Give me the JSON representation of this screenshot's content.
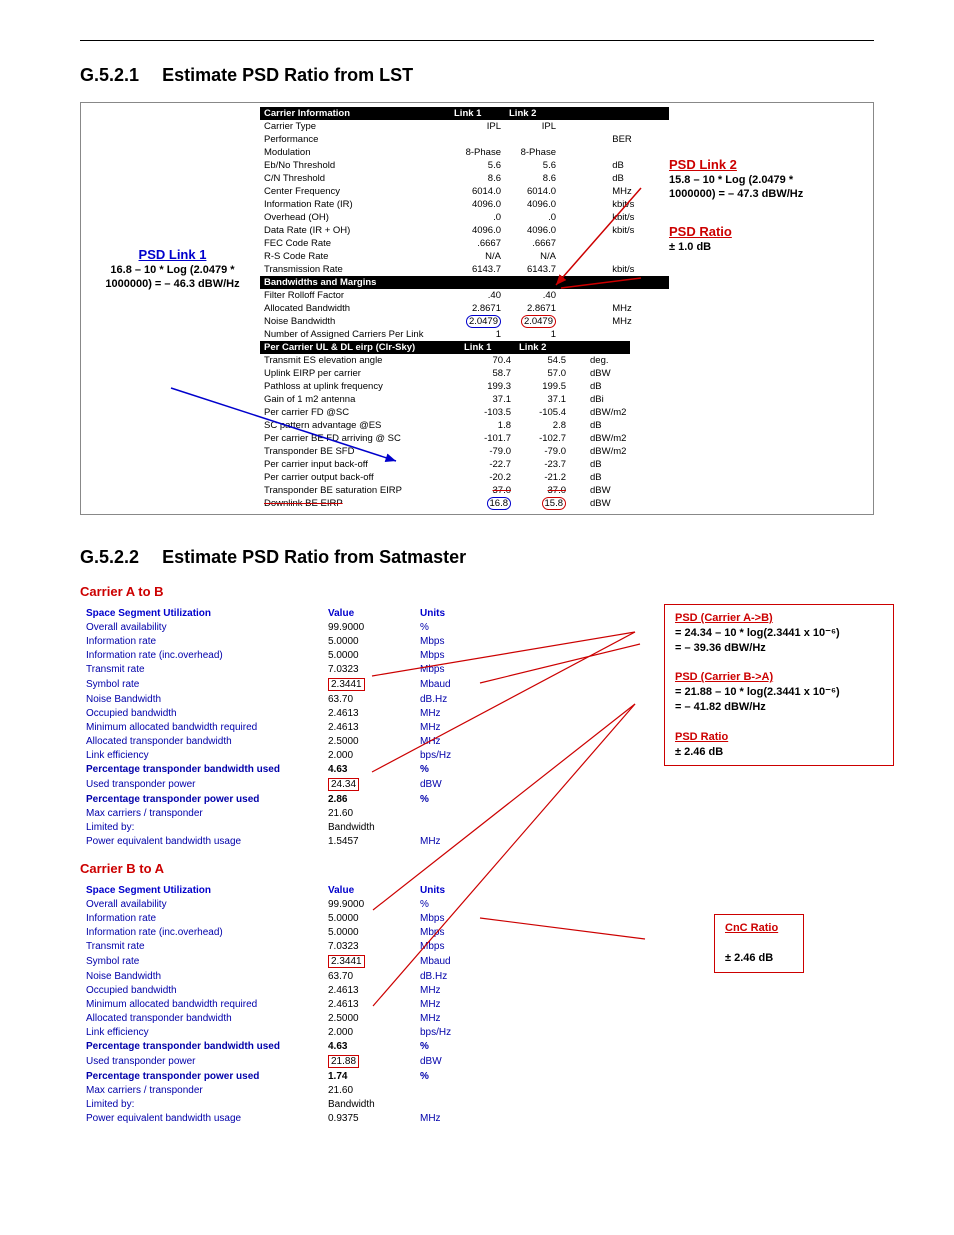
{
  "section1": {
    "number": "G.5.2.1",
    "title": "Estimate PSD Ratio from LST",
    "carrier_info_header": "Carrier Information",
    "link1_header": "Link 1",
    "link2_header": "Link 2",
    "carrier_rows": [
      {
        "label": "Carrier Type",
        "l1": "IPL",
        "l2": "IPL",
        "unit": ""
      },
      {
        "label": "Performance",
        "l1": "",
        "l2": "",
        "unit": "BER"
      },
      {
        "label": "Modulation",
        "l1": "8-Phase",
        "l2": "8-Phase",
        "unit": ""
      },
      {
        "label": "Eb/No Threshold",
        "l1": "5.6",
        "l2": "5.6",
        "unit": "dB"
      },
      {
        "label": "C/N Threshold",
        "l1": "8.6",
        "l2": "8.6",
        "unit": "dB"
      },
      {
        "label": "Center Frequency",
        "l1": "6014.0",
        "l2": "6014.0",
        "unit": "MHz"
      },
      {
        "label": "Information Rate (IR)",
        "l1": "4096.0",
        "l2": "4096.0",
        "unit": "kbit/s"
      },
      {
        "label": "Overhead (OH)",
        "l1": ".0",
        "l2": ".0",
        "unit": "kbit/s"
      },
      {
        "label": "Data Rate (IR + OH)",
        "l1": "4096.0",
        "l2": "4096.0",
        "unit": "kbit/s"
      },
      {
        "label": "FEC Code Rate",
        "l1": ".6667",
        "l2": ".6667",
        "unit": ""
      },
      {
        "label": "R-S Code Rate",
        "l1": "N/A",
        "l2": "N/A",
        "unit": ""
      },
      {
        "label": "Transmission Rate",
        "l1": "6143.7",
        "l2": "6143.7",
        "unit": "kbit/s"
      }
    ],
    "bandwidths_header": "Bandwidths and Margins",
    "bandwidth_rows": [
      {
        "label": "Filter Rolloff Factor",
        "l1": ".40",
        "l2": ".40",
        "unit": ""
      },
      {
        "label": "Allocated Bandwidth",
        "l1": "2.8671",
        "l2": "2.8671",
        "unit": "MHz"
      },
      {
        "label": "Noise Bandwidth",
        "l1": "2.0479",
        "l2": "2.0479",
        "unit": "MHz",
        "circled": true
      },
      {
        "label": "Number of Assigned Carriers Per Link",
        "l1": "1",
        "l2": "1",
        "unit": ""
      }
    ],
    "eirp_header": "Per Carrier UL & DL eirp (Clr-Sky)",
    "eirp_link1": "Link 1",
    "eirp_link2": "Link 2",
    "eirp_rows": [
      {
        "label": "Transmit ES elevation angle",
        "l1": "70.4",
        "l2": "54.5",
        "unit": "deg."
      },
      {
        "label": "Uplink EIRP per carrier",
        "l1": "58.7",
        "l2": "57.0",
        "unit": "dBW"
      },
      {
        "label": "Pathloss at uplink frequency",
        "l1": "199.3",
        "l2": "199.5",
        "unit": "dB"
      },
      {
        "label": "Gain of 1 m2 antenna",
        "l1": "37.1",
        "l2": "37.1",
        "unit": "dBi"
      },
      {
        "label": "Per carrier FD @SC",
        "l1": "-103.5",
        "l2": "-105.4",
        "unit": "dBW/m2"
      },
      {
        "label": "SC pattern advantage @ES",
        "l1": "1.8",
        "l2": "2.8",
        "unit": "dB"
      },
      {
        "label": "Per carrier BE FD arriving @ SC",
        "l1": "-101.7",
        "l2": "-102.7",
        "unit": "dBW/m2"
      },
      {
        "label": "Transponder BE SFD",
        "l1": "-79.0",
        "l2": "-79.0",
        "unit": "dBW/m2"
      },
      {
        "label": "Per carrier input back-off",
        "l1": "-22.7",
        "l2": "-23.7",
        "unit": "dB"
      },
      {
        "label": "Per carrier output back-off",
        "l1": "-20.2",
        "l2": "-21.2",
        "unit": "dB"
      },
      {
        "label": "Transponder BE saturation EIRP",
        "l1": "37.0",
        "l2": "37.0",
        "unit": "dBW",
        "strike": true
      },
      {
        "label": "Downlink BE EIRP",
        "l1": "16.8",
        "l2": "15.8",
        "unit": "dBW",
        "circled": true,
        "strike_label": true
      }
    ],
    "psd_link1_label": "PSD Link 1",
    "psd_link1_calc1": "16.8 – 10 * Log (2.0479 *",
    "psd_link1_calc2": "1000000) = – 46.3 dBW/Hz",
    "psd_link2_label": "PSD Link 2",
    "psd_link2_calc1": "15.8 – 10 * Log (2.0479 *",
    "psd_link2_calc2": "1000000) = – 47.3 dBW/Hz",
    "psd_ratio_label": "PSD Ratio",
    "psd_ratio_val": "± 1.0 dB"
  },
  "section2": {
    "number": "G.5.2.2",
    "title": "Estimate PSD Ratio from Satmaster",
    "carrier_ab": "Carrier A to B",
    "carrier_ba": "Carrier B to A",
    "ssu_header": "Space Segment Utilization",
    "value_header": "Value",
    "units_header": "Units",
    "ab_rows": [
      {
        "label": "Overall availability",
        "val": "99.9000",
        "unit": "%"
      },
      {
        "label": "Information rate",
        "val": "5.0000",
        "unit": "Mbps"
      },
      {
        "label": "Information rate (inc.overhead)",
        "val": "5.0000",
        "unit": "Mbps"
      },
      {
        "label": "Transmit rate",
        "val": "7.0323",
        "unit": "Mbps"
      },
      {
        "label": "Symbol rate",
        "val": "2.3441",
        "unit": "Mbaud",
        "boxed": true
      },
      {
        "label": "Noise Bandwidth",
        "val": "63.70",
        "unit": "dB.Hz"
      },
      {
        "label": "Occupied bandwidth",
        "val": "2.4613",
        "unit": "MHz"
      },
      {
        "label": "Minimum allocated bandwidth required",
        "val": "2.4613",
        "unit": "MHz"
      },
      {
        "label": "Allocated transponder bandwidth",
        "val": "2.5000",
        "unit": "MHz"
      },
      {
        "label": "Link efficiency",
        "val": "2.000",
        "unit": "bps/Hz"
      },
      {
        "label": "Percentage transponder bandwidth used",
        "val": "4.63",
        "unit": "%",
        "bold": true
      },
      {
        "label": "Used transponder power",
        "val": "24.34",
        "unit": "dBW",
        "boxed": true
      },
      {
        "label": "Percentage transponder power used",
        "val": "2.86",
        "unit": "%",
        "bold": true
      },
      {
        "label": "Max carriers / transponder",
        "val": "21.60",
        "unit": ""
      },
      {
        "label": "Limited by:",
        "val": "Bandwidth",
        "unit": ""
      },
      {
        "label": "Power equivalent bandwidth usage",
        "val": "1.5457",
        "unit": "MHz"
      }
    ],
    "ba_rows": [
      {
        "label": "Overall availability",
        "val": "99.9000",
        "unit": "%"
      },
      {
        "label": "Information rate",
        "val": "5.0000",
        "unit": "Mbps"
      },
      {
        "label": "Information rate (inc.overhead)",
        "val": "5.0000",
        "unit": "Mbps"
      },
      {
        "label": "Transmit rate",
        "val": "7.0323",
        "unit": "Mbps"
      },
      {
        "label": "Symbol rate",
        "val": "2.3441",
        "unit": "Mbaud",
        "boxed": true
      },
      {
        "label": "Noise Bandwidth",
        "val": "63.70",
        "unit": "dB.Hz"
      },
      {
        "label": "Occupied bandwidth",
        "val": "2.4613",
        "unit": "MHz"
      },
      {
        "label": "Minimum allocated bandwidth required",
        "val": "2.4613",
        "unit": "MHz"
      },
      {
        "label": "Allocated transponder bandwidth",
        "val": "2.5000",
        "unit": "MHz"
      },
      {
        "label": "Link efficiency",
        "val": "2.000",
        "unit": "bps/Hz"
      },
      {
        "label": "Percentage transponder bandwidth used",
        "val": "4.63",
        "unit": "%",
        "bold": true
      },
      {
        "label": "Used transponder power",
        "val": "21.88",
        "unit": "dBW",
        "boxed": true
      },
      {
        "label": "Percentage transponder power used",
        "val": "1.74",
        "unit": "%",
        "bold": true
      },
      {
        "label": "Max carriers / transponder",
        "val": "21.60",
        "unit": ""
      },
      {
        "label": "Limited by:",
        "val": "Bandwidth",
        "unit": ""
      },
      {
        "label": "Power equivalent bandwidth usage",
        "val": "0.9375",
        "unit": "MHz"
      }
    ],
    "callout1": {
      "psd_ab_lbl": "PSD (Carrier A->B)",
      "psd_ab_calc": "= 24.34 – 10 * log(2.3441 x 10⁻⁶)",
      "psd_ab_res": "= – 39.36 dBW/Hz",
      "psd_ba_lbl": "PSD (Carrier B->A)",
      "psd_ba_calc": "= 21.88 – 10 * log(2.3441 x 10⁻⁶)",
      "psd_ba_res": "= – 41.82 dBW/Hz",
      "ratio_lbl": "PSD Ratio",
      "ratio_val": "± 2.46 dB"
    },
    "callout2": {
      "lbl": "CnC Ratio",
      "val": "± 2.46 dB"
    }
  }
}
